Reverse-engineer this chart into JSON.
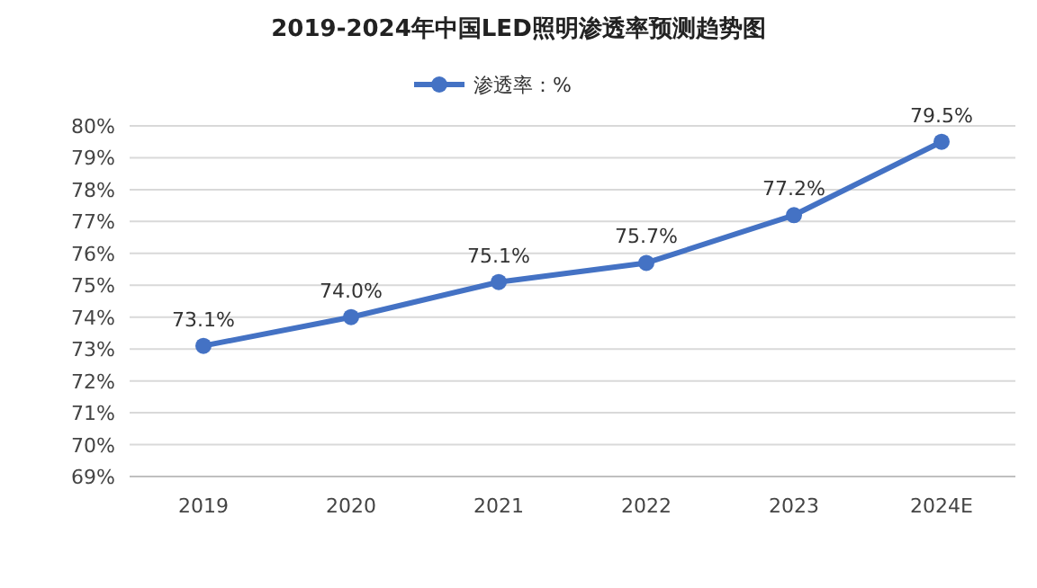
{
  "chart_data": {
    "type": "line",
    "title": "2019-2024年中国LED照明渗透率预测趋势图",
    "categories": [
      "2019",
      "2020",
      "2021",
      "2022",
      "2023",
      "2024E"
    ],
    "series": [
      {
        "name": "渗透率：%",
        "color": "#4472c4",
        "values": [
          73.1,
          74.0,
          75.1,
          75.7,
          77.2,
          79.5
        ],
        "value_labels": [
          "73.1%",
          "74.0%",
          "75.1%",
          "75.7%",
          "77.2%",
          "79.5%"
        ]
      }
    ],
    "ylim": [
      69,
      80
    ],
    "yticks": [
      {
        "value": 69,
        "label": "69%"
      },
      {
        "value": 70,
        "label": "70%"
      },
      {
        "value": 71,
        "label": "71%"
      },
      {
        "value": 72,
        "label": "72%"
      },
      {
        "value": 73,
        "label": "73%"
      },
      {
        "value": 74,
        "label": "74%"
      },
      {
        "value": 75,
        "label": "75%"
      },
      {
        "value": 76,
        "label": "76%"
      },
      {
        "value": 77,
        "label": "77%"
      },
      {
        "value": 78,
        "label": "78%"
      },
      {
        "value": 79,
        "label": "79%"
      },
      {
        "value": 80,
        "label": "80%"
      }
    ],
    "grid": "y",
    "legend": "top",
    "marker": "circle",
    "line_style": "solid"
  }
}
